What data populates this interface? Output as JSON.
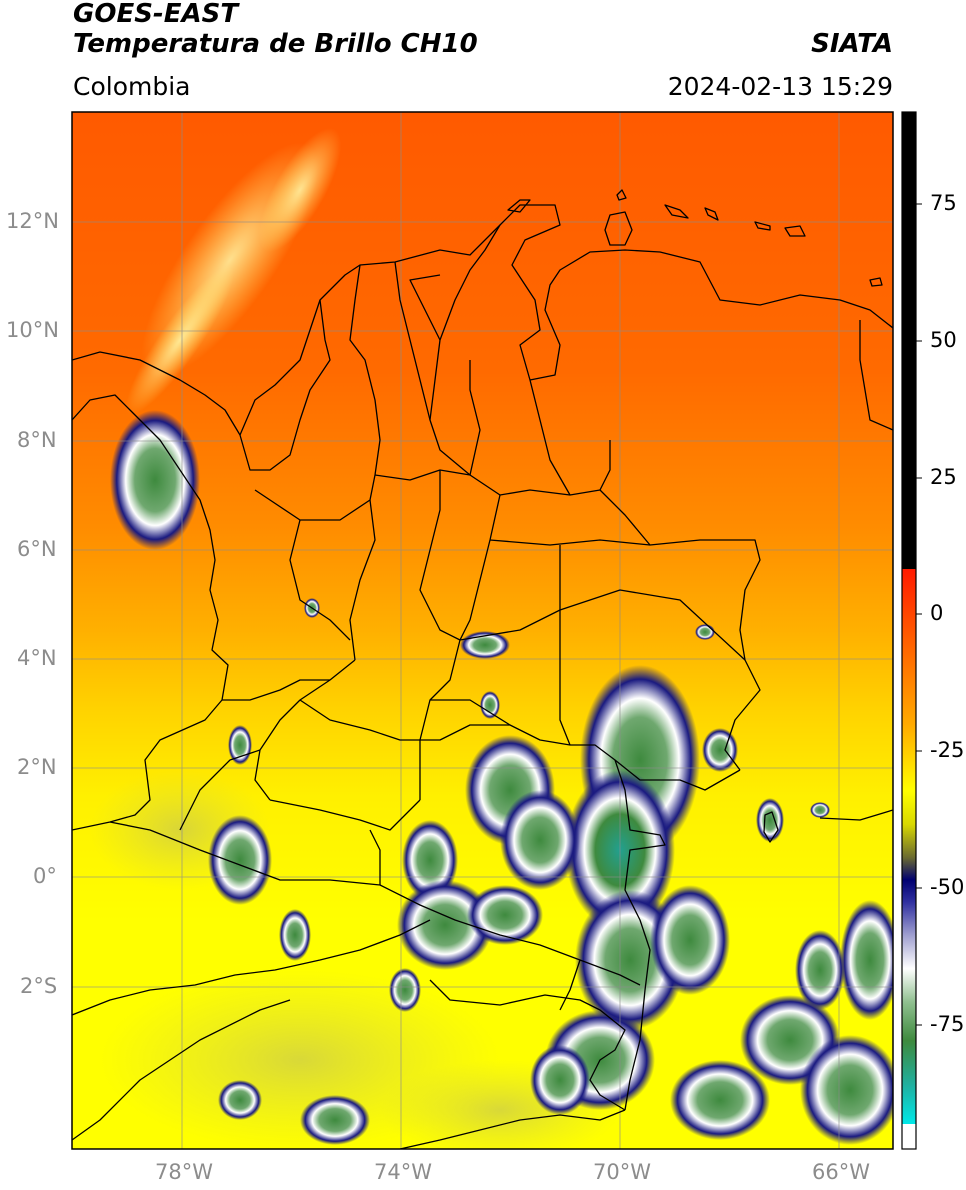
{
  "header": {
    "title_line1": "GOES-EAST",
    "title_line2": "Temperatura de Brillo CH10",
    "organization": "SIATA",
    "region": "Colombia",
    "datetime": "2024-02-13 15:29"
  },
  "map": {
    "lat_labels": [
      "12°N",
      "10°N",
      "8°N",
      "6°N",
      "4°N",
      "2°N",
      "0°",
      "2°S"
    ],
    "lon_labels": [
      "78°W",
      "74°W",
      "70°W",
      "66°W"
    ],
    "gridline_color": "#8c8c8c"
  },
  "colorbar": {
    "tick_labels": [
      "75",
      "50",
      "25",
      "0",
      "-25",
      "-50",
      "-75"
    ],
    "colors": {
      "warm_top": "#000000",
      "red": "#ff1a00",
      "orange": "#ff7a00",
      "yellow": "#ffff00",
      "olive": "#8a8a3c",
      "navy": "#15157a",
      "white": "#ffffff",
      "green": "#3e8a3e",
      "cyan": "#10d8d8"
    }
  }
}
